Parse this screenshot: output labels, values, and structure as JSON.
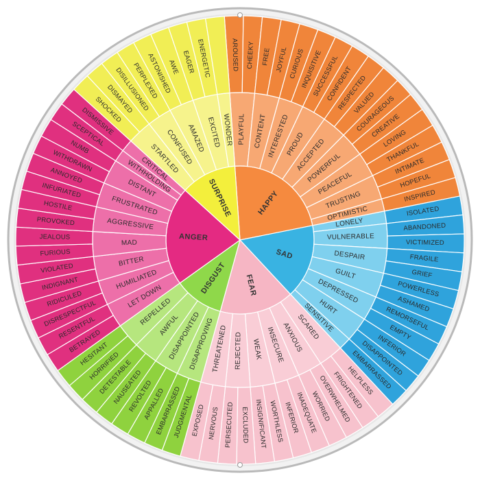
{
  "wheel": {
    "categories": [
      {
        "name": "HAPPY",
        "colors": {
          "core": "#f58a3f",
          "middle": "#f7a873",
          "outer": "#f0853a"
        },
        "subs": [
          {
            "name": "PLAYFUL",
            "outer": [
              "AROUSED",
              "CHEEKY"
            ]
          },
          {
            "name": "CONTENT",
            "outer": [
              "FREE",
              "JOYFUL"
            ]
          },
          {
            "name": "INTERESTED",
            "outer": [
              "CURIOUS",
              "INQUISITIVE"
            ]
          },
          {
            "name": "PROUD",
            "outer": [
              "SUCCESSFUL",
              "CONFIDENT"
            ]
          },
          {
            "name": "ACCEPTED",
            "outer": [
              "RESPECTED",
              "VALUED"
            ]
          },
          {
            "name": "POWERFUL",
            "outer": [
              "COURAGEOUS",
              "CREATIVE"
            ]
          },
          {
            "name": "PEACEFUL",
            "outer": [
              "LOVING",
              "THANKFUL"
            ]
          },
          {
            "name": "TRUSTING",
            "outer": [
              "INTIMATE",
              "HOPEFUL"
            ]
          },
          {
            "name": "OPTIMISTIC",
            "outer": [
              "INSPIRED"
            ]
          }
        ]
      },
      {
        "name": "SAD",
        "colors": {
          "core": "#39b3e2",
          "middle": "#7fd0ee",
          "outer": "#2fa3dc"
        },
        "subs": [
          {
            "name": "LONELY",
            "outer": [
              "ISOLATED"
            ]
          },
          {
            "name": "VULNERABLE",
            "outer": [
              "ABANDONED",
              "VICTIMIZED"
            ]
          },
          {
            "name": "DESPAIR",
            "outer": [
              "FRAGILE",
              "GRIEF"
            ]
          },
          {
            "name": "GUILT",
            "outer": [
              "POWERLESS",
              "ASHAMED"
            ]
          },
          {
            "name": "DEPRESSED",
            "outer": [
              "REMORSEFUL",
              "EMPTY"
            ]
          },
          {
            "name": "HURT",
            "outer": [
              "INFERIOR",
              "DISAPPOINTED"
            ]
          },
          {
            "name": "SENSITIVE",
            "outer": [
              "EMBARRASSED"
            ]
          }
        ]
      },
      {
        "name": "FEAR",
        "colors": {
          "core": "#f6b6c4",
          "middle": "#f9cdd6",
          "outer": "#f7c2cd"
        },
        "subs": [
          {
            "name": "SCARED",
            "outer": [
              "HELPLESS",
              "FRIGHTENED"
            ]
          },
          {
            "name": "ANXIOUS",
            "outer": [
              "OVERWHELMED",
              "WORRIED"
            ]
          },
          {
            "name": "INSECURE",
            "outer": [
              "INADEQUATE",
              "INFERIOR"
            ]
          },
          {
            "name": "WEAK",
            "outer": [
              "WORTHLESS",
              "INSIGNIFICANT"
            ]
          },
          {
            "name": "REJECTED",
            "outer": [
              "EXCLUDED",
              "PERSECUTED"
            ]
          },
          {
            "name": "THREATENED",
            "outer": [
              "NERVOUS",
              "EXPOSED"
            ]
          }
        ]
      },
      {
        "name": "DISGUST",
        "colors": {
          "core": "#8fd84a",
          "middle": "#b6e67e",
          "outer": "#8fd23e"
        },
        "subs": [
          {
            "name": "DISAPPROVING",
            "outer": [
              "JUDGMENTAL",
              "EMBARRASSED"
            ]
          },
          {
            "name": "DISAPPOINTED",
            "outer": [
              "APPALLED",
              "REVOLTED"
            ]
          },
          {
            "name": "AWFUL",
            "outer": [
              "NAUSEATED",
              "DETESTABLE"
            ]
          },
          {
            "name": "REPELLED",
            "outer": [
              "HORRIFIED",
              "HESITANT"
            ]
          }
        ]
      },
      {
        "name": "ANGER",
        "colors": {
          "core": "#e42a82",
          "middle": "#ed6fa9",
          "outer": "#e0307f"
        },
        "subs": [
          {
            "name": "LET DOWN",
            "outer": [
              "BETRAYED",
              "RESENTFUL"
            ]
          },
          {
            "name": "HUMILIATED",
            "outer": [
              "DISRESPECTFUL",
              "RIDICULED"
            ]
          },
          {
            "name": "BITTER",
            "outer": [
              "INDIGNANT",
              "VIOLATED"
            ]
          },
          {
            "name": "MAD",
            "outer": [
              "FURIOUS",
              "JEALOUS"
            ]
          },
          {
            "name": "AGGRESSIVE",
            "outer": [
              "PROVOKED",
              "HOSTILE"
            ]
          },
          {
            "name": "FRUSTRATED",
            "outer": [
              "INFURIATED",
              "ANNOYED"
            ]
          },
          {
            "name": "DISTANT",
            "outer": [
              "WITHDRAWN",
              "NUMB"
            ]
          },
          {
            "name": "WITHHOLDING",
            "outer": [
              "SCEPTICAL"
            ]
          },
          {
            "name": "CRITICAL",
            "outer": [
              "DISMISSIVE"
            ]
          }
        ]
      },
      {
        "name": "SURPRISE",
        "colors": {
          "core": "#f3ef3c",
          "middle": "#f6f38c",
          "outer": "#f1ee55"
        },
        "subs": [
          {
            "name": "STARTLED",
            "outer": [
              "SHOCKED",
              "DISMAYED"
            ]
          },
          {
            "name": "CONFUSED",
            "outer": [
              "DISILLUSIONED",
              "PERPLEXED"
            ]
          },
          {
            "name": "AMAZED",
            "outer": [
              "ASTONISHED",
              "AWE"
            ]
          },
          {
            "name": "EXCITED",
            "outer": [
              "EAGER",
              "ENERGETIC"
            ]
          },
          {
            "name": "WONDER",
            "outer": []
          }
        ]
      }
    ]
  }
}
